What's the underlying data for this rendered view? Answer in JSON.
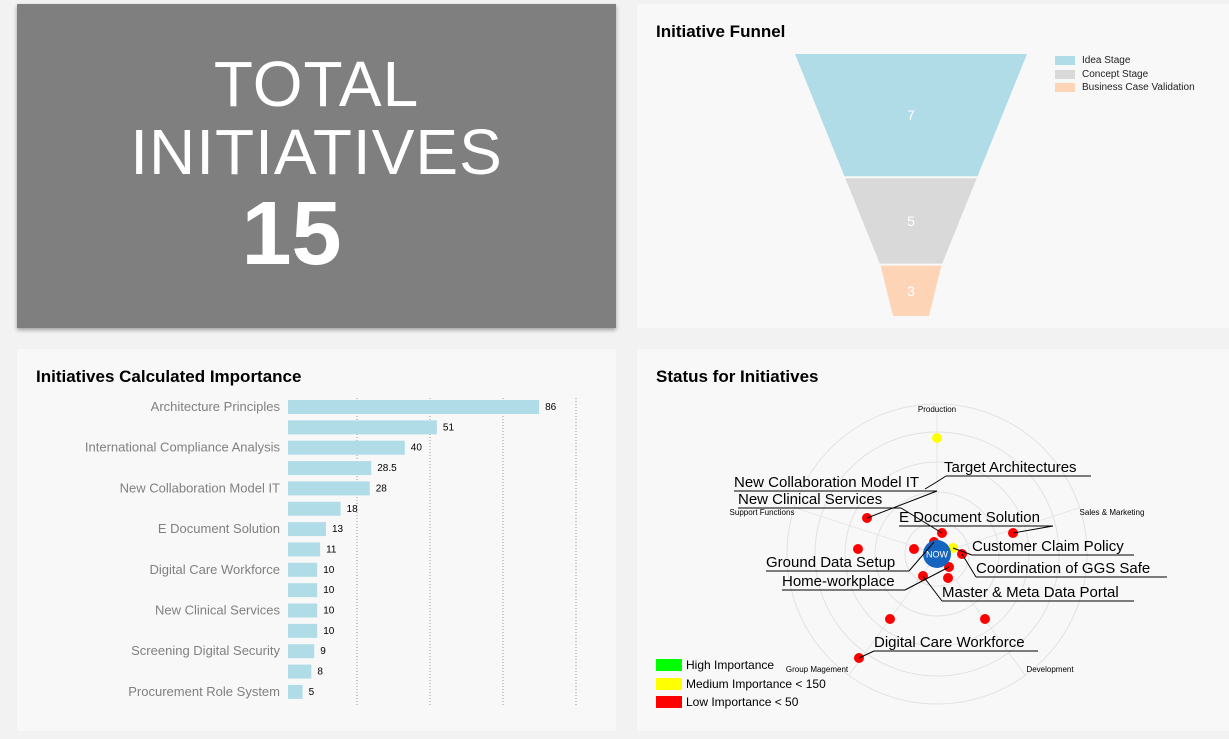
{
  "total": {
    "label": "TOTAL INITIATIVES",
    "count": "15"
  },
  "funnel": {
    "title": "Initiative Funnel",
    "legend": [
      {
        "label": "Idea Stage",
        "color": "#b0dce8"
      },
      {
        "label": "Concept Stage",
        "color": "#d9d9d9"
      },
      {
        "label": "Business Case Validation",
        "color": "#fdd4b6"
      }
    ]
  },
  "importance": {
    "title": "Initiatives Calculated Importance"
  },
  "status": {
    "title": "Status for Initiatives",
    "center_label": "NOW",
    "sectors": [
      "Production",
      "Sales & Marketing",
      "Development",
      "Group Magement",
      "Support Functions"
    ],
    "legend": [
      {
        "label": "High Importance",
        "color": "#00ff00"
      },
      {
        "label": "Medium Importance < 150",
        "color": "#ffff00"
      },
      {
        "label": "Low Importance < 50",
        "color": "#ff0000"
      }
    ]
  },
  "chart_data": [
    {
      "type": "funnel",
      "title": "Initiative Funnel",
      "categories": [
        "Idea Stage",
        "Concept Stage",
        "Business Case Validation"
      ],
      "values": [
        7,
        5,
        3
      ],
      "colors": [
        "#b0dce8",
        "#d9d9d9",
        "#fdd4b6"
      ],
      "legend": "top-right"
    },
    {
      "type": "bar",
      "orientation": "horizontal",
      "title": "Initiatives Calculated Importance",
      "categories": [
        "Architecture Principles",
        "",
        "International Compliance Analysis",
        "",
        "New Collaboration Model IT",
        "",
        "E Document Solution",
        "",
        "Digital Care Workforce",
        "",
        "New Clinical Services",
        "",
        "Screening Digital Security",
        "",
        "Procurement Role System"
      ],
      "values": [
        86,
        51,
        40,
        28.5,
        28,
        18,
        13,
        11,
        10,
        10,
        10,
        10,
        9,
        8,
        5
      ],
      "xlim": [
        0,
        100
      ],
      "grid": true,
      "color": "#b0dce8"
    },
    {
      "type": "scatter",
      "subtype": "radar",
      "title": "Status for Initiatives",
      "labeled_points": [
        "Target Architectures",
        "New Collaboration Model IT",
        "New Clinical Services",
        "E Document Solution",
        "Customer Claim Policy",
        "Ground Data Setup",
        "Coordination of GGS Safe",
        "Home-workplace",
        "Master & Meta Data Portal",
        "Digital Care Workforce"
      ]
    }
  ]
}
